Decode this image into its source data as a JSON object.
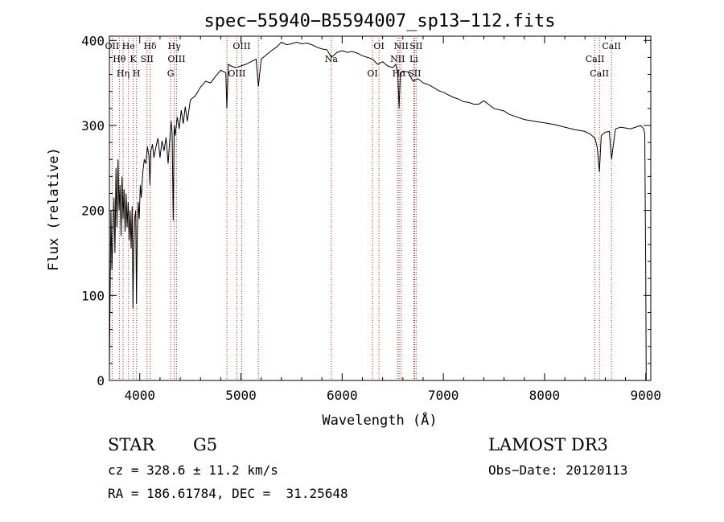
{
  "chart_data": {
    "type": "line",
    "title": "spec−55940−B5594007_sp13−112.fits",
    "xlabel": "Wavelength (Å)",
    "ylabel": "Flux (relative)",
    "xlim": [
      3700,
      9050
    ],
    "ylim": [
      0,
      405
    ],
    "xticks": [
      4000,
      5000,
      6000,
      7000,
      8000,
      9000
    ],
    "yticks": [
      0,
      100,
      200,
      300,
      400
    ],
    "grid": false,
    "series": [
      {
        "x": [
          3700,
          3715,
          3725,
          3735,
          3745,
          3755,
          3765,
          3775,
          3785,
          3795,
          3805,
          3815,
          3825,
          3835,
          3845,
          3855,
          3865,
          3875,
          3885,
          3895,
          3905,
          3915,
          3925,
          3933,
          3940,
          3950,
          3960,
          3968,
          3975,
          3985,
          3995,
          4005,
          4015,
          4030,
          4045,
          4060,
          4075,
          4090,
          4101,
          4110,
          4125,
          4140,
          4160,
          4180,
          4200,
          4220,
          4240,
          4260,
          4280,
          4300,
          4310,
          4320,
          4330,
          4340,
          4350,
          4370,
          4390,
          4410,
          4430,
          4450,
          4470,
          4500,
          4550,
          4600,
          4650,
          4700,
          4750,
          4800,
          4850,
          4861,
          4875,
          4900,
          4950,
          5000,
          5050,
          5100,
          5150,
          5172,
          5200,
          5250,
          5300,
          5350,
          5400,
          5450,
          5500,
          5550,
          5600,
          5650,
          5700,
          5750,
          5800,
          5850,
          5893,
          5950,
          6000,
          6050,
          6100,
          6150,
          6200,
          6250,
          6300,
          6350,
          6400,
          6450,
          6500,
          6530,
          6550,
          6563,
          6575,
          6600,
          6650,
          6700,
          6750,
          6800,
          6850,
          6900,
          6950,
          7000,
          7050,
          7100,
          7150,
          7200,
          7250,
          7300,
          7350,
          7400,
          7500,
          7600,
          7650,
          7700,
          7800,
          7900,
          8000,
          8100,
          8200,
          8300,
          8400,
          8450,
          8498,
          8520,
          8542,
          8560,
          8600,
          8640,
          8662,
          8700,
          8750,
          8800,
          8850,
          8900,
          8950,
          8980,
          8990,
          9000,
          9005
        ],
        "y": [
          15,
          200,
          130,
          175,
          215,
          150,
          250,
          180,
          260,
          200,
          230,
          170,
          240,
          190,
          225,
          175,
          220,
          180,
          210,
          165,
          200,
          155,
          205,
          85,
          150,
          190,
          200,
          90,
          170,
          210,
          190,
          230,
          215,
          245,
          260,
          255,
          275,
          265,
          230,
          270,
          278,
          262,
          275,
          285,
          262,
          282,
          270,
          286,
          255,
          290,
          305,
          290,
          188,
          300,
          288,
          310,
          296,
          318,
          302,
          322,
          305,
          330,
          335,
          345,
          352,
          350,
          358,
          365,
          362,
          320,
          372,
          370,
          368,
          370,
          372,
          375,
          378,
          346,
          378,
          383,
          388,
          392,
          398,
          395,
          396,
          398,
          396,
          397,
          395,
          392,
          390,
          389,
          380,
          386,
          388,
          386,
          387,
          385,
          382,
          380,
          378,
          372,
          375,
          370,
          368,
          372,
          360,
          320,
          362,
          364,
          363,
          352,
          355,
          350,
          348,
          345,
          341,
          339,
          336,
          333,
          331,
          328,
          327,
          325,
          325,
          329,
          320,
          317,
          313,
          311,
          307,
          305,
          303,
          301,
          298,
          295,
          293,
          290,
          285,
          275,
          245,
          288,
          292,
          293,
          260,
          296,
          298,
          297,
          296,
          298,
          300,
          296,
          290,
          130,
          0
        ]
      }
    ],
    "line_markers": [
      {
        "label": "OII",
        "x": 3727
      },
      {
        "label": "Hθ",
        "x": 3798
      },
      {
        "label": "Hη",
        "x": 3835
      },
      {
        "label": "He",
        "x": 3889
      },
      {
        "label": "K",
        "x": 3934
      },
      {
        "label": "H",
        "x": 3968
      },
      {
        "label": "Hδ",
        "x": 4102
      },
      {
        "label": "SII",
        "x": 4072
      },
      {
        "label": "G",
        "x": 4305
      },
      {
        "label": "Hγ",
        "x": 4341
      },
      {
        "label": "OIII",
        "x": 4363
      },
      {
        "label": "OIII",
        "x": 4959
      },
      {
        "label": "OIII",
        "x": 5007
      },
      {
        "label": "Na",
        "x": 5893
      },
      {
        "label": "OI",
        "x": 6300
      },
      {
        "label": "OI",
        "x": 6364
      },
      {
        "label": "NII",
        "x": 6548
      },
      {
        "label": "Hα",
        "x": 6563
      },
      {
        "label": "NII",
        "x": 6583
      },
      {
        "label": "Li",
        "x": 6708
      },
      {
        "label": "SII",
        "x": 6716
      },
      {
        "label": "SII",
        "x": 6731
      },
      {
        "label": "CaII",
        "x": 8498
      },
      {
        "label": "CaII",
        "x": 8542
      },
      {
        "label": "CaII",
        "x": 8662
      }
    ],
    "marker_extra_lines": [
      4861,
      5172
    ]
  },
  "info": {
    "object_class": "STAR",
    "subclass": "G5",
    "survey": "LAMOST DR3",
    "cz": "cz = 328.6 ± 11.2 km/s",
    "obs_date": "Obs−Date: 20120113",
    "coords": "RA = 186.61784, DEC =  31.25648"
  }
}
